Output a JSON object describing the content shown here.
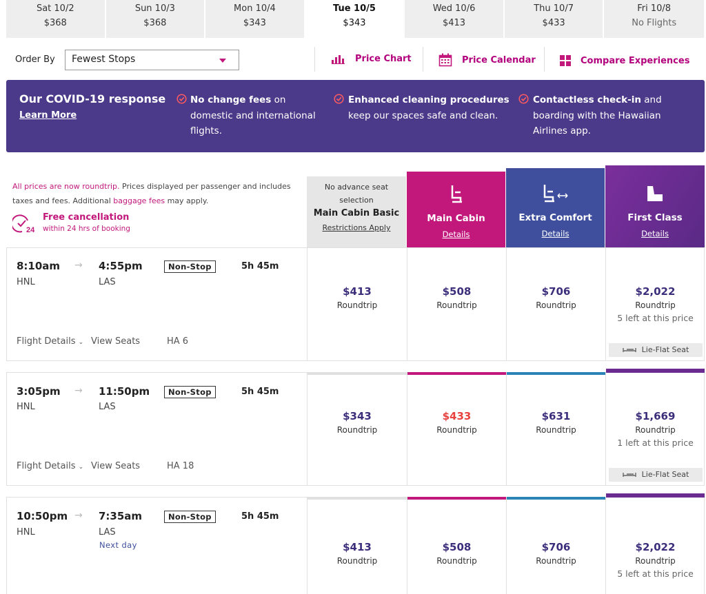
{
  "date_tabs": [
    {
      "day": "Sat 10/2",
      "price": "$368"
    },
    {
      "day": "Sun 10/3",
      "price": "$368"
    },
    {
      "day": "Mon 10/4",
      "price": "$343"
    },
    {
      "day": "Tue 10/5",
      "price": "$343"
    },
    {
      "day": "Wed 10/6",
      "price": "$413"
    },
    {
      "day": "Thu 10/7",
      "price": "$433"
    },
    {
      "day": "Fri 10/8",
      "price": "No Flights"
    }
  ],
  "toolbar": {
    "order_label": "Order By",
    "order_value": "Fewest Stops",
    "price_chart": "Price Chart",
    "price_calendar": "Price Calendar",
    "compare": "Compare Experiences"
  },
  "covid": {
    "title": "Our COVID-19 response",
    "learn_more": "Learn More",
    "item1_bold": "No change fees",
    "item1_rest": " on domestic and international flights.",
    "item2_bold": "Enhanced cleaning procedures",
    "item2_rest": " keep our spaces safe and clean.",
    "item3_bold": "Contactless check-in",
    "item3_rest": " and boarding with the Hawaiian Airlines app."
  },
  "info": {
    "pink1": "All prices are now roundtrip.",
    "text1": " Prices displayed per passenger and includes taxes and fees. Additional ",
    "pink2": "baggage fees",
    "text2": " may apply."
  },
  "free_cancel": {
    "icon_number": "24",
    "title": "Free cancellation",
    "sub": "within 24 hrs of booking"
  },
  "columns": {
    "basic": {
      "pre": "No advance seat selection",
      "name": "Main Cabin Basic",
      "link": "Restrictions Apply"
    },
    "main": {
      "name": "Main Cabin",
      "link": "Details"
    },
    "extra": {
      "name": "Extra Comfort",
      "link": "Details"
    },
    "first": {
      "name": "First Class",
      "link": "Details"
    }
  },
  "colors": {
    "basic": "#e0e0e0",
    "main": "#c2187c",
    "extra": "#2b84b5",
    "first": "#6a2c91"
  },
  "flights": [
    {
      "depart": "8:10am",
      "arrive": "4:55pm",
      "from": "HNL",
      "to": "LAS",
      "stops": "Non-Stop",
      "duration": "5h 45m",
      "next_day": "",
      "details": "Flight Details",
      "seats": "View Seats",
      "number": "HA 6",
      "basic": "$413",
      "main": "$508",
      "extra": "$706",
      "first": "$2,022",
      "roundtrip": "Roundtrip",
      "first_left": "5 left at this price",
      "lieflat": "Lie-Flat Seat"
    },
    {
      "depart": "3:05pm",
      "arrive": "11:50pm",
      "from": "HNL",
      "to": "LAS",
      "stops": "Non-Stop",
      "duration": "5h 45m",
      "next_day": "",
      "details": "Flight Details",
      "seats": "View Seats",
      "number": "HA 18",
      "basic": "$343",
      "main": "$433",
      "extra": "$631",
      "first": "$1,669",
      "roundtrip": "Roundtrip",
      "first_left": "1 left at this price",
      "lieflat": "Lie-Flat Seat"
    },
    {
      "depart": "10:50pm",
      "arrive": "7:35am",
      "from": "HNL",
      "to": "LAS",
      "stops": "Non-Stop",
      "duration": "5h 45m",
      "next_day": "Next day",
      "details": "",
      "seats": "",
      "number": "",
      "basic": "$413",
      "main": "$508",
      "extra": "$706",
      "first": "$2,022",
      "roundtrip": "Roundtrip",
      "first_left": "5 left at this price",
      "lieflat": ""
    }
  ]
}
